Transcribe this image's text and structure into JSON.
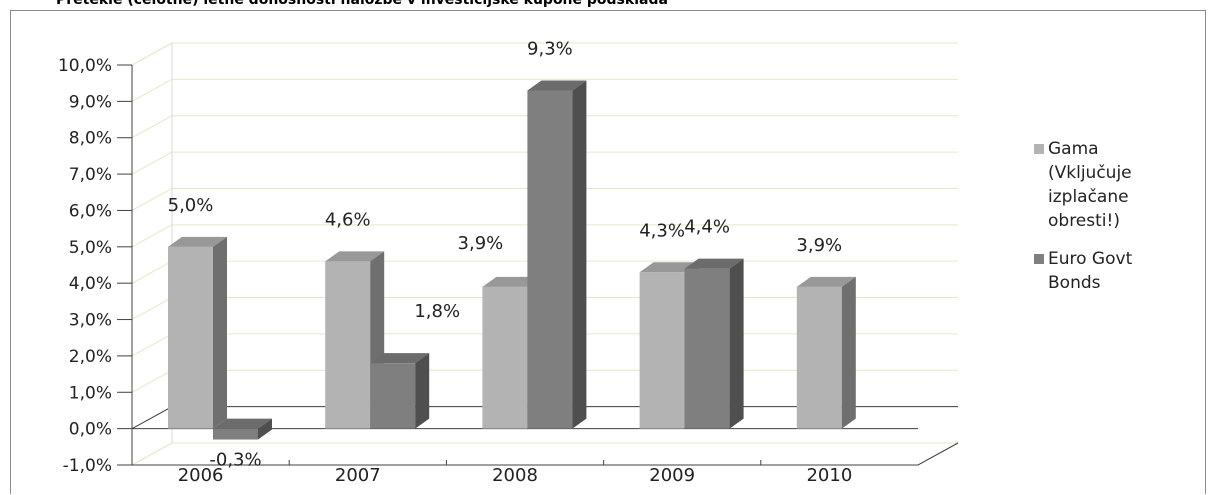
{
  "title": "Pretekle (celotne) letne donosnosti naložbe v investicijske kupone podsklada",
  "chart_data": {
    "type": "bar",
    "categories": [
      "2006",
      "2007",
      "2008",
      "2009",
      "2010"
    ],
    "series": [
      {
        "name": "Gama (Vključuje izplačane obresti!)",
        "values": [
          5.0,
          4.6,
          3.9,
          4.3,
          3.9
        ],
        "labels": [
          "5,0%",
          "4,6%",
          "3,9%",
          "4,3%",
          "3,9%"
        ],
        "color": "#b3b3b3"
      },
      {
        "name": "Euro Govt Bonds",
        "values": [
          -0.3,
          1.8,
          9.3,
          4.4,
          null
        ],
        "labels": [
          "-0,3%",
          "1,8%",
          "9,3%",
          "4,4%",
          ""
        ],
        "color": "#7f7f7f"
      }
    ],
    "yticks": [
      "-1,0%",
      "0,0%",
      "1,0%",
      "2,0%",
      "3,0%",
      "4,0%",
      "5,0%",
      "6,0%",
      "7,0%",
      "8,0%",
      "9,0%",
      "10,0%"
    ],
    "ylim": [
      -1,
      10
    ],
    "grid": true,
    "legend_position": "right"
  },
  "legend": {
    "items": [
      {
        "lines": [
          "Gama",
          "(Vključuje",
          "izplačane",
          "obresti!)"
        ],
        "color": "#b3b3b3"
      },
      {
        "lines": [
          "Euro Govt",
          "Bonds"
        ],
        "color": "#7f7f7f"
      }
    ]
  }
}
